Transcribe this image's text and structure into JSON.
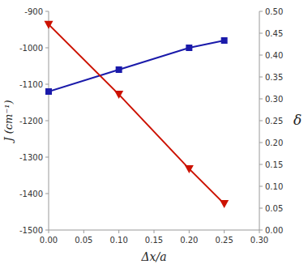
{
  "chart_data": {
    "type": "line",
    "xlabel": "Δx/a",
    "ylabel": "J (cm⁻¹)",
    "y2label": "δ",
    "x": [
      0.0,
      0.1,
      0.2,
      0.25
    ],
    "series": [
      {
        "color": "#1a1aaa",
        "marker": "square",
        "values": [
          -1120,
          -1060,
          -1000,
          -980
        ]
      },
      {
        "color": "#cc1100",
        "marker": "triangle-down",
        "axis": "y2",
        "values": [
          0.47,
          0.31,
          0.14,
          0.06
        ]
      }
    ],
    "xlim": [
      0.0,
      0.3
    ],
    "ylim": [
      -1500,
      -900
    ],
    "y2lim": [
      0.0,
      0.5
    ],
    "xticks": [
      {
        "value": 0.0,
        "label": "0.00"
      },
      0.05,
      {
        "value": 0.1,
        "label": "0.10"
      },
      0.15,
      {
        "value": 0.2,
        "label": "0.20"
      },
      0.25,
      {
        "value": 0.3,
        "label": "0.30"
      }
    ],
    "yticks": [
      -1500,
      -1400,
      -1300,
      -1200,
      -1100,
      -1000,
      -900
    ],
    "y2ticks": [
      {
        "value": 0.0,
        "label": "0.00"
      },
      0.05,
      {
        "value": 0.1,
        "label": "0.10"
      },
      0.15,
      {
        "value": 0.2,
        "label": "0.20"
      },
      0.25,
      {
        "value": 0.3,
        "label": "0.30"
      },
      0.35,
      {
        "value": 0.4,
        "label": "0.40"
      },
      0.45,
      {
        "value": 0.5,
        "label": "0.50"
      }
    ],
    "grid": false
  }
}
